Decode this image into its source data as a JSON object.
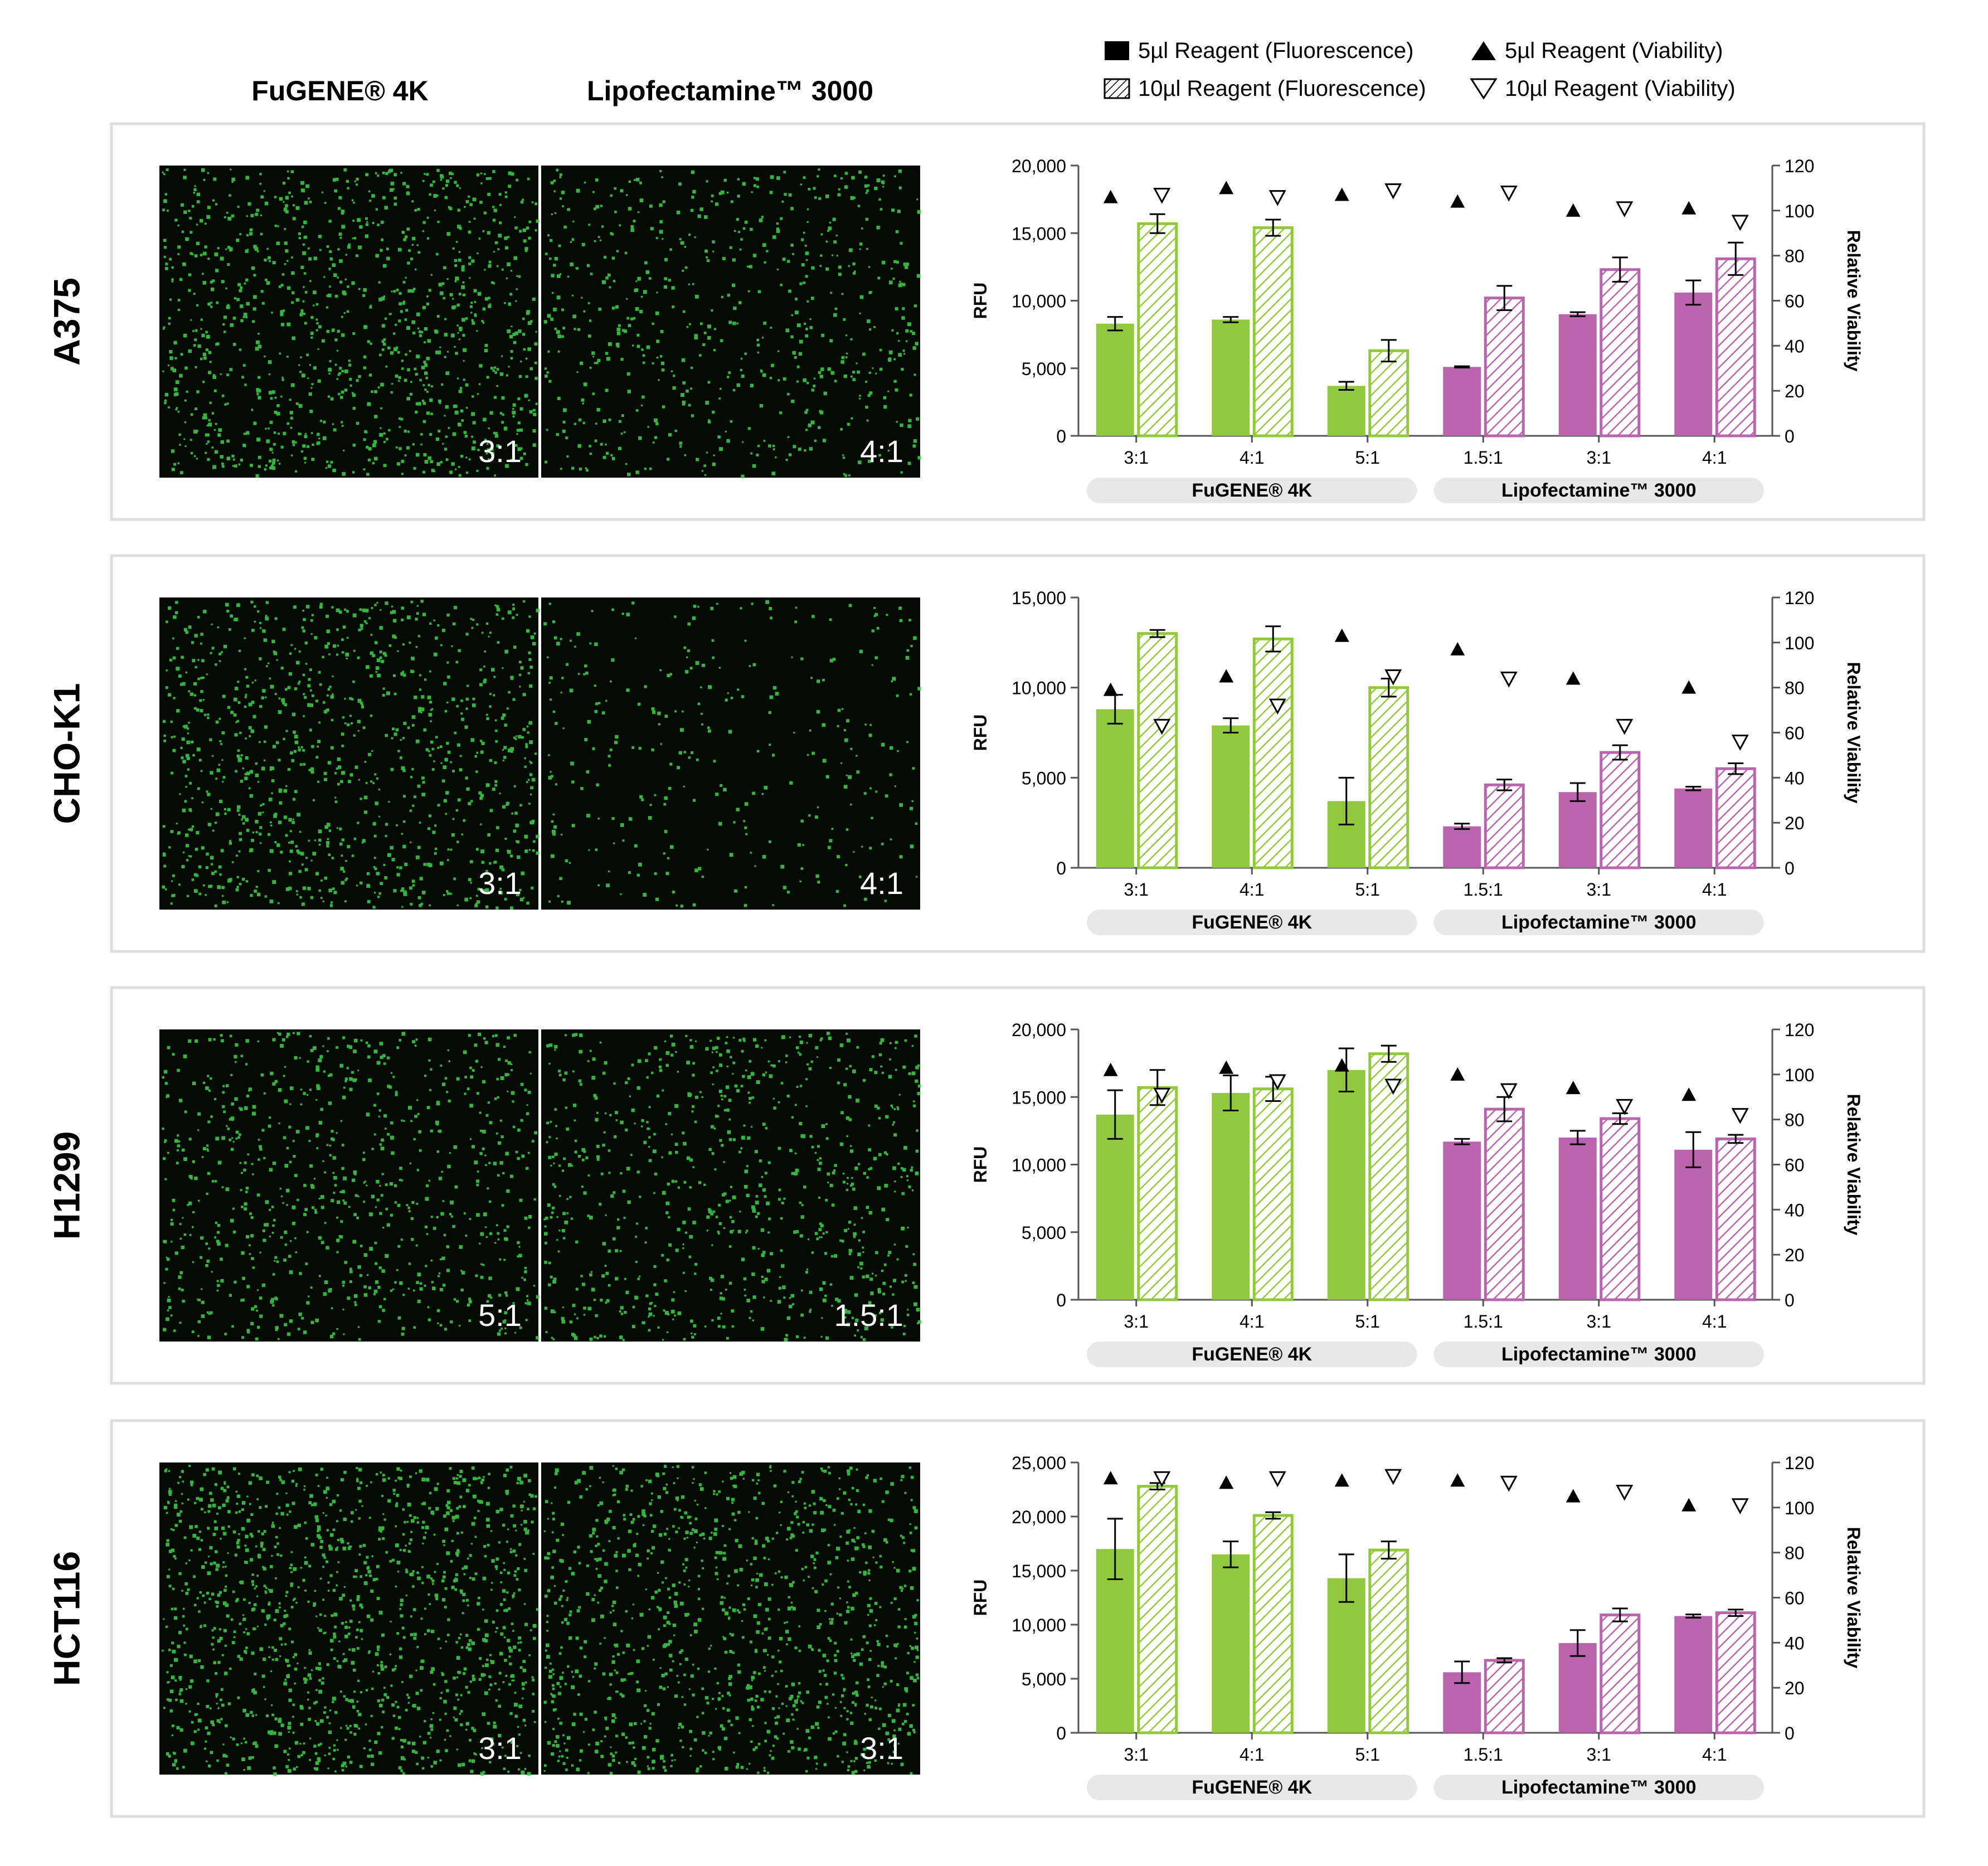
{
  "header": {
    "left_title": "FuGENE® 4K",
    "right_title": "Lipofectamine™ 3000"
  },
  "legend": [
    {
      "label": "5µl Reagent (Fluorescence)",
      "marker": "filled-square-icon"
    },
    {
      "label": "5µl Reagent (Viability)",
      "marker": "filled-triangle-icon"
    },
    {
      "label": "10µl Reagent (Fluorescence)",
      "marker": "hatched-square-icon"
    },
    {
      "label": "10µl Reagent (Viability)",
      "marker": "open-down-triangle-icon"
    }
  ],
  "colors": {
    "fugene": "#92c83e",
    "lipo": "#b964ad",
    "panel_border": "#dddddd",
    "group_pill": "#e8e8e8",
    "micrograph_bg": "#050a05",
    "cell_green": "#3fd24a"
  },
  "chart_data": [
    {
      "type": "bar",
      "cell_line": "A375",
      "image_labels": [
        "3:1",
        "4:1"
      ],
      "categories": [
        "3:1",
        "4:1",
        "5:1",
        "1.5:1",
        "3:1",
        "4:1"
      ],
      "groups": [
        "FuGENE® 4K",
        "Lipofectamine™ 3000"
      ],
      "ylabel": "RFU",
      "y2label": "Relative Viability",
      "ylim": [
        0,
        20000
      ],
      "yticks": [
        "0",
        "5,000",
        "10,000",
        "15,000",
        "20,000"
      ],
      "y2lim": [
        0,
        120
      ],
      "y2ticks": [
        "0",
        "20",
        "40",
        "60",
        "80",
        "100",
        "120"
      ],
      "series": [
        {
          "name": "5µl Reagent (Fluorescence)",
          "values": [
            8300,
            8600,
            3700,
            5100,
            9000,
            10600
          ],
          "errors": [
            500,
            200,
            300,
            50,
            150,
            900
          ]
        },
        {
          "name": "10µl Reagent (Fluorescence)",
          "values": [
            15700,
            15400,
            6300,
            10200,
            12300,
            13100
          ],
          "errors": [
            700,
            600,
            800,
            900,
            900,
            1200
          ]
        },
        {
          "name": "5µl Reagent (Viability)",
          "values": [
            106,
            110,
            107,
            104,
            100,
            101
          ]
        },
        {
          "name": "10µl Reagent (Viability)",
          "values": [
            107,
            106,
            109,
            108,
            101,
            95
          ]
        }
      ]
    },
    {
      "type": "bar",
      "cell_line": "CHO-K1",
      "image_labels": [
        "3:1",
        "4:1"
      ],
      "categories": [
        "3:1",
        "4:1",
        "5:1",
        "1.5:1",
        "3:1",
        "4:1"
      ],
      "groups": [
        "FuGENE® 4K",
        "Lipofectamine™ 3000"
      ],
      "ylabel": "RFU",
      "y2label": "Relative Viability",
      "ylim": [
        0,
        15000
      ],
      "yticks": [
        "0",
        "5,000",
        "10,000",
        "15,000"
      ],
      "y2lim": [
        0,
        120
      ],
      "y2ticks": [
        "0",
        "20",
        "40",
        "60",
        "80",
        "100",
        "120"
      ],
      "series": [
        {
          "name": "5µl Reagent (Fluorescence)",
          "values": [
            8800,
            7900,
            3700,
            2300,
            4200,
            4400
          ],
          "errors": [
            800,
            400,
            1300,
            150,
            500,
            100
          ]
        },
        {
          "name": "10µl Reagent (Fluorescence)",
          "values": [
            13000,
            12700,
            10000,
            4600,
            6400,
            5500
          ],
          "errors": [
            200,
            700,
            500,
            300,
            400,
            300
          ]
        },
        {
          "name": "5µl Reagent (Viability)",
          "values": [
            79,
            85,
            103,
            97,
            84,
            80
          ]
        },
        {
          "name": "10µl Reagent (Viability)",
          "values": [
            63,
            72,
            85,
            84,
            63,
            56
          ]
        }
      ]
    },
    {
      "type": "bar",
      "cell_line": "H1299",
      "image_labels": [
        "5:1",
        "1.5:1"
      ],
      "categories": [
        "3:1",
        "4:1",
        "5:1",
        "1.5:1",
        "3:1",
        "4:1"
      ],
      "groups": [
        "FuGENE® 4K",
        "Lipofectamine™ 3000"
      ],
      "ylabel": "RFU",
      "y2label": "Relative Viability",
      "ylim": [
        0,
        20000
      ],
      "yticks": [
        "0",
        "5,000",
        "10,000",
        "15,000",
        "20,000"
      ],
      "y2lim": [
        0,
        120
      ],
      "y2ticks": [
        "0",
        "20",
        "40",
        "60",
        "80",
        "100",
        "120"
      ],
      "series": [
        {
          "name": "5µl Reagent (Fluorescence)",
          "values": [
            13700,
            15300,
            17000,
            11700,
            12000,
            11100
          ],
          "errors": [
            1800,
            1300,
            1600,
            200,
            500,
            1300
          ]
        },
        {
          "name": "10µl Reagent (Fluorescence)",
          "values": [
            15700,
            15600,
            18200,
            14100,
            13400,
            11900
          ],
          "errors": [
            1300,
            900,
            600,
            900,
            400,
            300
          ]
        },
        {
          "name": "5µl Reagent (Viability)",
          "values": [
            102,
            103,
            104,
            100,
            94,
            91
          ]
        },
        {
          "name": "10µl Reagent (Viability)",
          "values": [
            91,
            97,
            95,
            93,
            86,
            82
          ]
        }
      ]
    },
    {
      "type": "bar",
      "cell_line": "HCT116",
      "image_labels": [
        "3:1",
        "3:1"
      ],
      "categories": [
        "3:1",
        "4:1",
        "5:1",
        "1.5:1",
        "3:1",
        "4:1"
      ],
      "groups": [
        "FuGENE® 4K",
        "Lipofectamine™ 3000"
      ],
      "ylabel": "RFU",
      "y2label": "Relative Viability",
      "ylim": [
        0,
        25000
      ],
      "yticks": [
        "0",
        "5,000",
        "10,000",
        "15,000",
        "20,000",
        "25,000"
      ],
      "y2lim": [
        0,
        120
      ],
      "y2ticks": [
        "0",
        "20",
        "40",
        "60",
        "80",
        "100",
        "120"
      ],
      "series": [
        {
          "name": "5µl Reagent (Fluorescence)",
          "values": [
            17000,
            16500,
            14300,
            5600,
            8300,
            10800
          ],
          "errors": [
            2800,
            1200,
            2200,
            1000,
            1200,
            150
          ]
        },
        {
          "name": "10µl Reagent (Fluorescence)",
          "values": [
            22800,
            20100,
            16900,
            6700,
            10900,
            11100
          ],
          "errors": [
            300,
            300,
            800,
            200,
            600,
            300
          ]
        },
        {
          "name": "5µl Reagent (Viability)",
          "values": [
            113,
            111,
            112,
            112,
            105,
            101
          ]
        },
        {
          "name": "10µl Reagent (Viability)",
          "values": [
            113,
            113,
            114,
            111,
            107,
            101
          ]
        }
      ]
    }
  ]
}
